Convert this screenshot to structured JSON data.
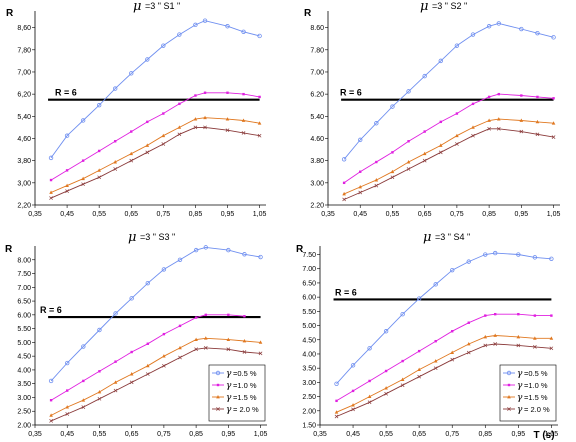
{
  "colors": {
    "s05": "#6f8ff0",
    "s10": "#e020e0",
    "s15": "#e07820",
    "s20": "#8a3a3a",
    "ref": "#000000",
    "axis": "#000000"
  },
  "chart_data": [
    {
      "type": "line",
      "title_mu": "μ",
      "title": "=3  \" S1 \"",
      "ylabel": "R",
      "xlabel": "",
      "xlim": [
        0.35,
        1.07
      ],
      "ylim": [
        2.2,
        9.2
      ],
      "xticks": [
        "0,35",
        "0,45",
        "0,55",
        "0,65",
        "0,75",
        "0,85",
        "0,95",
        "1,05"
      ],
      "yticks": [
        "2,20",
        "3,00",
        "3,80",
        "4,60",
        "5,40",
        "6,20",
        "7,00",
        "7,80",
        "8,60"
      ],
      "ref_label": "R = 6",
      "ref_value": 6,
      "series": [
        {
          "key": "s05",
          "x": [
            0.4,
            0.45,
            0.5,
            0.55,
            0.6,
            0.65,
            0.7,
            0.75,
            0.8,
            0.85,
            0.88,
            0.95,
            1.0,
            1.05
          ],
          "y": [
            3.9,
            4.7,
            5.25,
            5.8,
            6.4,
            6.95,
            7.45,
            7.95,
            8.35,
            8.7,
            8.85,
            8.65,
            8.45,
            8.3
          ]
        },
        {
          "key": "s10",
          "x": [
            0.4,
            0.45,
            0.5,
            0.55,
            0.6,
            0.65,
            0.7,
            0.75,
            0.8,
            0.85,
            0.88,
            0.95,
            1.0,
            1.05
          ],
          "y": [
            3.1,
            3.45,
            3.8,
            4.15,
            4.5,
            4.85,
            5.2,
            5.5,
            5.85,
            6.15,
            6.25,
            6.25,
            6.2,
            6.1
          ]
        },
        {
          "key": "s15",
          "x": [
            0.4,
            0.45,
            0.5,
            0.55,
            0.6,
            0.65,
            0.7,
            0.75,
            0.8,
            0.85,
            0.88,
            0.95,
            1.0,
            1.05
          ],
          "y": [
            2.65,
            2.9,
            3.15,
            3.45,
            3.75,
            4.05,
            4.35,
            4.7,
            5.0,
            5.3,
            5.35,
            5.3,
            5.25,
            5.15
          ]
        },
        {
          "key": "s20",
          "x": [
            0.4,
            0.45,
            0.5,
            0.55,
            0.6,
            0.65,
            0.7,
            0.75,
            0.8,
            0.85,
            0.88,
            0.95,
            1.0,
            1.05
          ],
          "y": [
            2.45,
            2.7,
            2.95,
            3.2,
            3.5,
            3.8,
            4.1,
            4.4,
            4.75,
            5.0,
            5.0,
            4.9,
            4.8,
            4.7
          ]
        }
      ]
    },
    {
      "type": "line",
      "title_mu": "μ",
      "title": "=3  \" S2 \"",
      "ylabel": "R",
      "xlabel": "",
      "xlim": [
        0.35,
        1.07
      ],
      "ylim": [
        2.2,
        9.2
      ],
      "xticks": [
        "0,35",
        "0,45",
        "0,55",
        "0,65",
        "0,75",
        "0,85",
        "0,95",
        "1,05"
      ],
      "yticks": [
        "2.20",
        "3.00",
        "3.80",
        "4.60",
        "5.40",
        "6.20",
        "7.00",
        "7.80",
        "8.60"
      ],
      "ref_label": "R = 6",
      "ref_value": 6,
      "series": [
        {
          "key": "s05",
          "x": [
            0.4,
            0.45,
            0.5,
            0.55,
            0.6,
            0.65,
            0.7,
            0.75,
            0.8,
            0.85,
            0.88,
            0.95,
            1.0,
            1.05
          ],
          "y": [
            3.85,
            4.55,
            5.15,
            5.75,
            6.3,
            6.85,
            7.4,
            7.95,
            8.35,
            8.65,
            8.75,
            8.55,
            8.4,
            8.25
          ]
        },
        {
          "key": "s10",
          "x": [
            0.4,
            0.45,
            0.5,
            0.55,
            0.6,
            0.65,
            0.7,
            0.75,
            0.8,
            0.85,
            0.88,
            0.95,
            1.0,
            1.05
          ],
          "y": [
            3.0,
            3.4,
            3.75,
            4.1,
            4.5,
            4.85,
            5.2,
            5.5,
            5.85,
            6.1,
            6.2,
            6.15,
            6.1,
            6.05
          ]
        },
        {
          "key": "s15",
          "x": [
            0.4,
            0.45,
            0.5,
            0.55,
            0.6,
            0.65,
            0.7,
            0.75,
            0.8,
            0.85,
            0.88,
            0.95,
            1.0,
            1.05
          ],
          "y": [
            2.6,
            2.85,
            3.1,
            3.4,
            3.75,
            4.05,
            4.35,
            4.7,
            5.0,
            5.25,
            5.3,
            5.25,
            5.2,
            5.15
          ]
        },
        {
          "key": "s20",
          "x": [
            0.4,
            0.45,
            0.5,
            0.55,
            0.6,
            0.65,
            0.7,
            0.75,
            0.8,
            0.85,
            0.88,
            0.95,
            1.0,
            1.05
          ],
          "y": [
            2.4,
            2.65,
            2.9,
            3.2,
            3.5,
            3.8,
            4.1,
            4.4,
            4.7,
            4.95,
            4.95,
            4.85,
            4.75,
            4.65
          ]
        }
      ]
    },
    {
      "type": "line",
      "title_mu": "μ",
      "title": "=3  \" S3 \"",
      "ylabel": "R",
      "xlabel": "",
      "xlim": [
        0.35,
        1.07
      ],
      "ylim": [
        2.0,
        8.5
      ],
      "xticks": [
        "0,35",
        "0,45",
        "0,55",
        "0,65",
        "0,75",
        "0,85",
        "0,95",
        "1,05"
      ],
      "yticks": [
        "2.00",
        "2.50",
        "3.00",
        "3.50",
        "4.00",
        "4.50",
        "5.00",
        "5.50",
        "6.00",
        "6.50",
        "7.00",
        "7.50",
        "8.00"
      ],
      "ref_label": "R = 6",
      "ref_value": 5.92,
      "legend": [
        {
          "key": "s05",
          "label": "=0.5 %"
        },
        {
          "key": "s10",
          "label": "=1.0 %"
        },
        {
          "key": "s15",
          "label": "=1.5 %"
        },
        {
          "key": "s20",
          "label": "= 2.0 %"
        }
      ],
      "series": [
        {
          "key": "s05",
          "x": [
            0.4,
            0.45,
            0.5,
            0.55,
            0.6,
            0.65,
            0.7,
            0.75,
            0.8,
            0.85,
            0.88,
            0.95,
            1.0,
            1.05
          ],
          "y": [
            3.6,
            4.25,
            4.85,
            5.45,
            6.05,
            6.6,
            7.15,
            7.65,
            8.0,
            8.35,
            8.45,
            8.35,
            8.2,
            8.1
          ]
        },
        {
          "key": "s10",
          "x": [
            0.4,
            0.45,
            0.5,
            0.55,
            0.6,
            0.65,
            0.7,
            0.75,
            0.8,
            0.85,
            0.88,
            0.95,
            1.0
          ],
          "y": [
            2.9,
            3.25,
            3.6,
            3.95,
            4.3,
            4.65,
            4.95,
            5.3,
            5.6,
            5.9,
            6.0,
            6.0,
            5.95
          ]
        },
        {
          "key": "s15",
          "x": [
            0.4,
            0.45,
            0.5,
            0.55,
            0.6,
            0.65,
            0.7,
            0.75,
            0.8,
            0.85,
            0.88,
            0.95,
            1.0,
            1.05
          ],
          "y": [
            2.35,
            2.65,
            2.9,
            3.2,
            3.55,
            3.85,
            4.15,
            4.5,
            4.8,
            5.1,
            5.15,
            5.1,
            5.05,
            5.0
          ]
        },
        {
          "key": "s20",
          "x": [
            0.4,
            0.45,
            0.5,
            0.55,
            0.6,
            0.65,
            0.7,
            0.75,
            0.8,
            0.85,
            0.88,
            0.95,
            1.0,
            1.05
          ],
          "y": [
            2.15,
            2.4,
            2.65,
            2.95,
            3.25,
            3.55,
            3.85,
            4.15,
            4.45,
            4.75,
            4.8,
            4.75,
            4.65,
            4.6
          ]
        }
      ]
    },
    {
      "type": "line",
      "title_mu": "μ",
      "title": "=3  \" S4 \"",
      "ylabel": "R",
      "xlabel": "T (s)",
      "xlim": [
        0.35,
        1.07
      ],
      "ylim": [
        1.5,
        7.8
      ],
      "xticks": [
        "0,35",
        "0,45",
        "0,55",
        "0,65",
        "0,75",
        "0,85",
        "0,95",
        "1,05"
      ],
      "yticks": [
        "1.50",
        "2.00",
        "2.50",
        "3.00",
        "3.50",
        "4.00",
        "4.50",
        "5.00",
        "5.50",
        "6.00",
        "6.50",
        "7.00",
        "7.50"
      ],
      "ref_label": "R = 6",
      "ref_value": 5.92,
      "legend": [
        {
          "key": "s05",
          "label": "=0.5 %"
        },
        {
          "key": "s10",
          "label": "=1.0 %"
        },
        {
          "key": "s15",
          "label": "=1.5 %"
        },
        {
          "key": "s20",
          "label": "= 2.0 %"
        }
      ],
      "series": [
        {
          "key": "s05",
          "x": [
            0.4,
            0.45,
            0.5,
            0.55,
            0.6,
            0.65,
            0.7,
            0.75,
            0.8,
            0.85,
            0.88,
            0.95,
            1.0,
            1.05
          ],
          "y": [
            2.95,
            3.6,
            4.2,
            4.8,
            5.4,
            5.95,
            6.45,
            6.95,
            7.25,
            7.5,
            7.55,
            7.5,
            7.4,
            7.35
          ]
        },
        {
          "key": "s10",
          "x": [
            0.4,
            0.45,
            0.5,
            0.55,
            0.6,
            0.65,
            0.7,
            0.75,
            0.8,
            0.85,
            0.88,
            0.95,
            1.0,
            1.05
          ],
          "y": [
            2.35,
            2.7,
            3.05,
            3.4,
            3.75,
            4.1,
            4.45,
            4.8,
            5.1,
            5.35,
            5.4,
            5.4,
            5.35,
            5.35
          ]
        },
        {
          "key": "s15",
          "x": [
            0.4,
            0.45,
            0.5,
            0.55,
            0.6,
            0.65,
            0.7,
            0.75,
            0.8,
            0.85,
            0.88,
            0.95,
            1.0,
            1.05
          ],
          "y": [
            1.95,
            2.2,
            2.5,
            2.8,
            3.1,
            3.45,
            3.75,
            4.05,
            4.35,
            4.6,
            4.65,
            4.6,
            4.55,
            4.55
          ]
        },
        {
          "key": "s20",
          "x": [
            0.4,
            0.45,
            0.5,
            0.55,
            0.6,
            0.65,
            0.7,
            0.75,
            0.8,
            0.85,
            0.88,
            0.95,
            1.0,
            1.05
          ],
          "y": [
            1.8,
            2.05,
            2.3,
            2.6,
            2.9,
            3.2,
            3.5,
            3.8,
            4.05,
            4.3,
            4.35,
            4.3,
            4.25,
            4.2
          ]
        }
      ]
    }
  ]
}
